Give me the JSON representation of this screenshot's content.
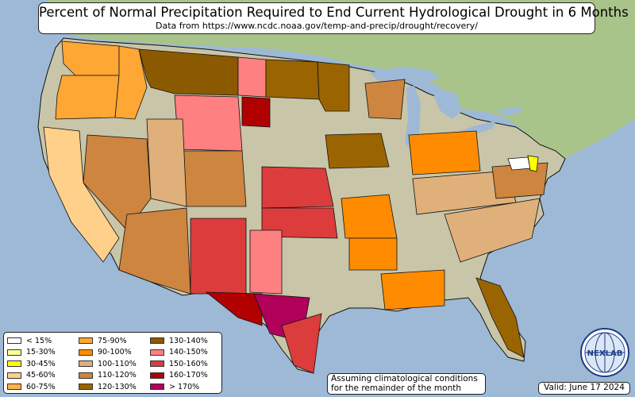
{
  "title": "Percent of Normal Precipitation Required to End Current Hydrological Drought in 6 Months",
  "subtitle": "Data from https://www.ncdc.noaa.gov/temp-and-precip/drought/recovery/",
  "legend": [
    {
      "label": "< 15%",
      "color": "#ffffff"
    },
    {
      "label": "15-30%",
      "color": "#ffff99"
    },
    {
      "label": "30-45%",
      "color": "#ffff00"
    },
    {
      "label": "45-60%",
      "color": "#ffd08a"
    },
    {
      "label": "60-75%",
      "color": "#ffb347"
    },
    {
      "label": "75-90%",
      "color": "#ffa734"
    },
    {
      "label": "90-100%",
      "color": "#ff8c00"
    },
    {
      "label": "100-110%",
      "color": "#e0b07a"
    },
    {
      "label": "110-120%",
      "color": "#cd853f"
    },
    {
      "label": "120-130%",
      "color": "#9a6400"
    },
    {
      "label": "130-140%",
      "color": "#8b5a00"
    },
    {
      "label": "140-150%",
      "color": "#ff8080"
    },
    {
      "label": "150-160%",
      "color": "#dc3c3c"
    },
    {
      "label": "160-170%",
      "color": "#b00000"
    },
    {
      "label": "> 170%",
      "color": "#b0005a"
    }
  ],
  "note": [
    "Assuming climatological conditions",
    "for the remainder of the month"
  ],
  "valid": "Valid: June 17 2024",
  "logo_text": "NEXLAB",
  "colors": {
    "ocean": "#9db9d6",
    "land_west": "#c9c5a8",
    "land_east": "#a9c48a",
    "boundary": "#111111"
  },
  "regions": [
    {
      "name": "Washington",
      "category": "75-90%"
    },
    {
      "name": "Oregon",
      "category": "75-90%"
    },
    {
      "name": "Idaho",
      "category": "75-90%"
    },
    {
      "name": "Montana",
      "category": "130-140%"
    },
    {
      "name": "Wyoming",
      "category": "140-150%"
    },
    {
      "name": "North Dakota (west)",
      "category": "140-150%"
    },
    {
      "name": "North Dakota (east)",
      "category": "120-130%"
    },
    {
      "name": "South Dakota",
      "category": "160-170%"
    },
    {
      "name": "Minnesota",
      "category": "120-130%"
    },
    {
      "name": "Iowa",
      "category": "120-130%"
    },
    {
      "name": "Nebraska / Kansas",
      "category": "150-160%"
    },
    {
      "name": "Oklahoma",
      "category": "150-160%"
    },
    {
      "name": "Colorado",
      "category": "110-120%"
    },
    {
      "name": "Utah",
      "category": "100-110%"
    },
    {
      "name": "Nevada",
      "category": "110-120%"
    },
    {
      "name": "California",
      "category": "45-60%"
    },
    {
      "name": "Arizona",
      "category": "110-120%"
    },
    {
      "name": "New Mexico",
      "category": "150-160%"
    },
    {
      "name": "Texas (west)",
      "category": "160-170%"
    },
    {
      "name": "Texas (central)",
      "category": "> 170%"
    },
    {
      "name": "Texas (panhandle)",
      "category": "140-150%"
    },
    {
      "name": "Texas (coast)",
      "category": "150-160%"
    },
    {
      "name": "Missouri",
      "category": "90-100%"
    },
    {
      "name": "Arkansas",
      "category": "90-100%"
    },
    {
      "name": "Mississippi / Alabama",
      "category": "90-100%"
    },
    {
      "name": "Ohio Valley",
      "category": "90-100%"
    },
    {
      "name": "Kentucky / Tennessee",
      "category": "100-110%"
    },
    {
      "name": "Georgia / Carolinas",
      "category": "100-110%"
    },
    {
      "name": "Florida",
      "category": "120-130%"
    },
    {
      "name": "Michigan",
      "category": "110-120%"
    },
    {
      "name": "Virginia",
      "category": "110-120%"
    },
    {
      "name": "Maryland",
      "category": "< 15%"
    },
    {
      "name": "Delaware",
      "category": "30-45%"
    }
  ]
}
